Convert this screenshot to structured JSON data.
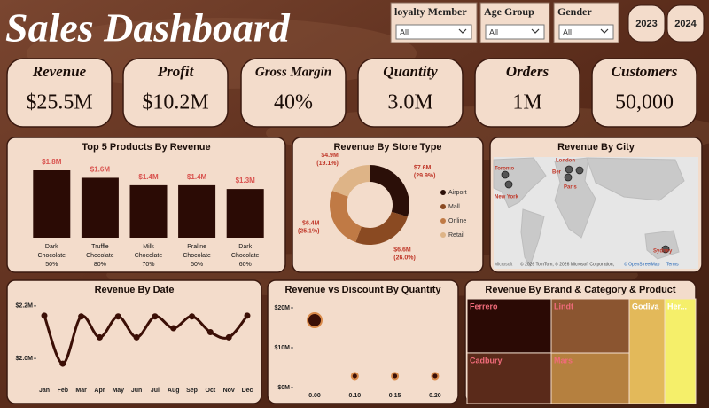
{
  "header": {
    "title": "Sales Dashboard"
  },
  "filters": [
    {
      "label": "loyalty Member",
      "value": "All"
    },
    {
      "label": "Age Group",
      "value": "All"
    },
    {
      "label": "Gender",
      "value": "All"
    }
  ],
  "years": [
    "2023",
    "2024"
  ],
  "kpis": [
    {
      "label": "Revenue",
      "value": "$25.5M"
    },
    {
      "label": "Profit",
      "value": "$10.2M"
    },
    {
      "label": "Gross Margin",
      "value": "40%"
    },
    {
      "label": "Quantity",
      "value": "3.0M"
    },
    {
      "label": "Orders",
      "value": "1M"
    },
    {
      "label": "Customers",
      "value": "50,000"
    }
  ],
  "map": {
    "title": "Revenue By City",
    "cities": [
      "Toronto",
      "New York",
      "London",
      "Ber",
      "Paris",
      "Sydney"
    ],
    "logo": "Microsoft",
    "attribution": "© 2026 TomTom, © 2026 Microsoft Corporation,",
    "links": [
      "© OpenStreetMap",
      "Terms"
    ]
  },
  "chart_data": [
    {
      "type": "bar",
      "title": "Top 5 Products By Revenue",
      "categories": [
        "Dark Chocolate 50%",
        "Truffle Chocolate 80%",
        "Milk Chocolate 70%",
        "Praline Chocolate 50%",
        "Dark Chocolate 60%"
      ],
      "values": [
        1800000,
        1600000,
        1400000,
        1400000,
        1300000
      ],
      "value_labels": [
        "$1.8M",
        "$1.6M",
        "$1.4M",
        "$1.4M",
        "$1.3M"
      ],
      "color": "#2b0b05",
      "label_color": "#d9534f"
    },
    {
      "type": "donut",
      "title": "Revenue By Store Type",
      "categories": [
        "Airport",
        "Mall",
        "Online",
        "Retail"
      ],
      "values": [
        7600000,
        6600000,
        6400000,
        4900000
      ],
      "value_labels": [
        "$7.6M",
        "$6.6M",
        "$6.4M",
        "$4.9M"
      ],
      "shares": [
        29.9,
        26.0,
        25.1,
        19.1
      ],
      "share_labels": [
        "(29.9%)",
        "(26.0%)",
        "(25.1%)",
        "(19.1%)"
      ],
      "colors": [
        "#2b0f08",
        "#8a4a22",
        "#c07a45",
        "#deb487"
      ],
      "label_color": "#c0392b",
      "legend": "right"
    },
    {
      "type": "line",
      "title": "Revenue By Date",
      "categories": [
        "Jan",
        "Feb",
        "Mar",
        "Apr",
        "May",
        "Jun",
        "Jul",
        "Aug",
        "Sep",
        "Oct",
        "Nov",
        "Dec"
      ],
      "values": [
        2163000,
        1980000,
        2160000,
        2080000,
        2160000,
        2080000,
        2160000,
        2115000,
        2160000,
        2100000,
        2080000,
        2163000
      ],
      "ylim": [
        1960000,
        2240000
      ],
      "yticks": [
        {
          "value": 2000000,
          "label": "$2.0M"
        },
        {
          "value": 2200000,
          "label": "$2.2M"
        }
      ],
      "color": "#3b0f06"
    },
    {
      "type": "scatter",
      "title": "Revenue vs Discount By Quantity",
      "categories": [
        "0.00",
        "0.10",
        "0.15",
        "0.20"
      ],
      "values": [
        16900000,
        2900000,
        2900000,
        2900000
      ],
      "sizes": [
        1890000,
        370000,
        370000,
        370000
      ],
      "ylim": [
        0,
        20000000
      ],
      "yticks": [
        {
          "value": 0,
          "label": "$0M"
        },
        {
          "value": 10000000,
          "label": "$10M"
        },
        {
          "value": 20000000,
          "label": "$20M"
        }
      ],
      "color": "#3b0f06",
      "ring_color": "#d98a4a"
    },
    {
      "type": "treemap",
      "title": "Revenue By Brand & Category & Product",
      "categories": [
        "Ferrero",
        "Cadbury",
        "Lindt",
        "Mars",
        "Godiva",
        "Her..."
      ],
      "values": [
        4850000,
        4540000,
        4500000,
        4200000,
        3950000,
        3460000
      ],
      "colors": [
        "#2b0a05",
        "#5a2a1a",
        "#8b5530",
        "#b5803f",
        "#e3b95a",
        "#f5ef6a"
      ]
    }
  ]
}
